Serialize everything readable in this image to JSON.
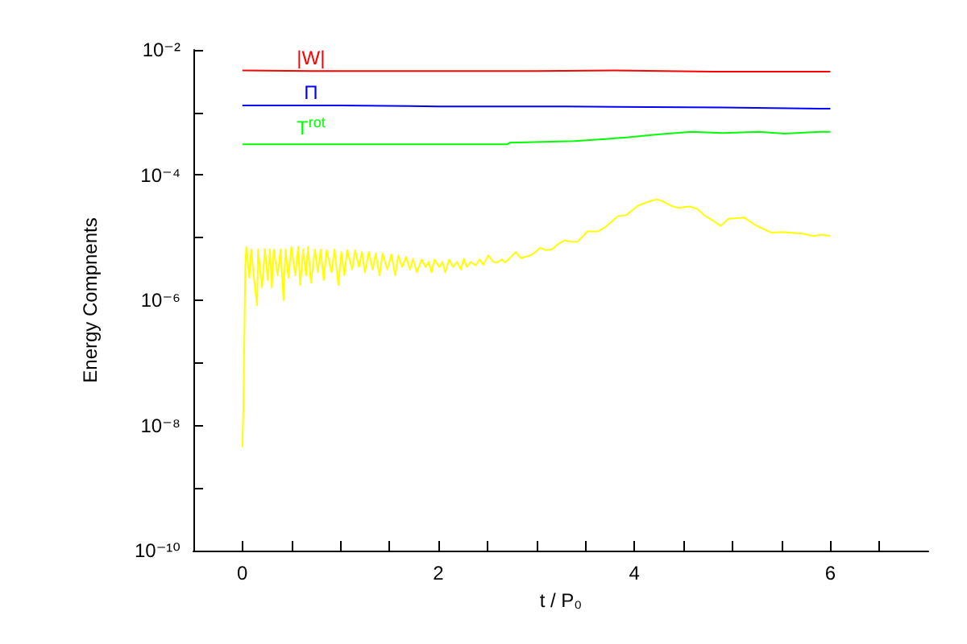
{
  "chart_data": {
    "type": "line",
    "xlabel": "t / P₀",
    "ylabel": "Energy Compnents",
    "log": "y",
    "xlim": [
      -0.5,
      7
    ],
    "xticks": [
      0,
      {
        "value": 0.5,
        "label": null
      },
      {
        "value": 1,
        "label": null
      },
      {
        "value": 1.5,
        "label": null
      },
      2,
      {
        "value": 2.5,
        "label": null
      },
      {
        "value": 3,
        "label": null
      },
      {
        "value": 3.5,
        "label": null
      },
      4,
      {
        "value": 4.5,
        "label": null
      },
      {
        "value": 5,
        "label": null
      },
      {
        "value": 5.5,
        "label": null
      },
      6,
      {
        "value": 6.5,
        "label": null
      }
    ],
    "ylim": [
      1e-10,
      0.01
    ],
    "yticks": [
      {
        "value": 1e-10,
        "label": "10⁻¹⁰"
      },
      {
        "value": 1e-09,
        "label": null
      },
      {
        "value": 1e-08,
        "label": "10⁻⁸"
      },
      {
        "value": 1e-07,
        "label": null
      },
      {
        "value": 1e-06,
        "label": "10⁻⁶"
      },
      {
        "value": 1e-05,
        "label": null
      },
      {
        "value": 0.0001,
        "label": "10⁻⁴"
      },
      {
        "value": 0.001,
        "label": null
      },
      {
        "value": 0.01,
        "label": "10⁻²"
      }
    ],
    "series": [
      {
        "name": "|W|",
        "color": "#ff0000",
        "x": [
          0,
          0.7,
          1,
          2,
          3,
          3.8,
          4.8,
          6
        ],
        "values": [
          0.0047,
          0.0046,
          0.0046,
          0.0046,
          0.0046,
          0.0047,
          0.0045,
          0.0045
        ]
      },
      {
        "name": "Π",
        "color": "#0000ff",
        "x": [
          0,
          0.7,
          1,
          2,
          3.3,
          4.9,
          6
        ],
        "values": [
          0.0013,
          0.0013,
          0.0013,
          0.00125,
          0.00125,
          0.0012,
          0.00115
        ]
      },
      {
        "name": "T$^{rot}$",
        "color": "#00ff00",
        "x": [
          0,
          0.7,
          2.7,
          2.73,
          3.39,
          3.73,
          3.92,
          4.13,
          4.26,
          4.58,
          4.9,
          5.27,
          5.53,
          5.9,
          6
        ],
        "values": [
          0.00031,
          0.00031,
          0.00031,
          0.00033,
          0.00035,
          0.00038,
          0.0004,
          0.00043,
          0.00045,
          0.00049,
          0.00047,
          0.00049,
          0.00046,
          0.00049,
          0.00049
        ]
      },
      {
        "color": "#ffff00",
        "x": [
          0,
          0.01,
          0.03,
          0.04,
          0.07,
          0.09,
          0.12,
          0.15,
          0.16,
          0.2,
          0.23,
          0.26,
          0.28,
          0.3,
          0.32,
          0.36,
          0.39,
          0.42,
          0.44,
          0.47,
          0.5,
          0.54,
          0.57,
          0.59,
          0.62,
          0.65,
          0.67,
          0.7,
          0.74,
          0.77,
          0.8,
          0.83,
          0.86,
          0.91,
          0.94,
          0.98,
          1.01,
          1.04,
          1.07,
          1.12,
          1.15,
          1.19,
          1.22,
          1.25,
          1.29,
          1.33,
          1.36,
          1.4,
          1.43,
          1.48,
          1.52,
          1.56,
          1.59,
          1.63,
          1.67,
          1.71,
          1.74,
          1.78,
          1.83,
          1.87,
          1.9,
          1.93,
          1.96,
          2.01,
          2.04,
          2.07,
          2.11,
          2.15,
          2.19,
          2.23,
          2.26,
          2.29,
          2.33,
          2.38,
          2.42,
          2.46,
          2.51,
          2.56,
          2.6,
          2.65,
          2.68,
          2.74,
          2.79,
          2.84,
          2.94,
          2.99,
          3.04,
          3.1,
          3.16,
          3.22,
          3.29,
          3.35,
          3.42,
          3.52,
          3.63,
          3.71,
          3.83,
          3.92,
          4.03,
          4.13,
          4.23,
          4.29,
          4.38,
          4.45,
          4.56,
          4.64,
          4.71,
          4.82,
          4.88,
          4.96,
          5.12,
          5.24,
          5.4,
          5.51,
          5.59,
          5.72,
          5.83,
          5.91,
          6
        ],
        "values": [
          4.5e-09,
          1.9e-08,
          3.7e-06,
          7.1e-06,
          2.3e-06,
          6.5e-06,
          2.1e-06,
          8.3e-07,
          6.5e-06,
          1.6e-06,
          6.5e-06,
          2.1e-06,
          6.5e-06,
          1.6e-06,
          6.5e-06,
          2.5e-06,
          6.5e-06,
          1e-06,
          6.5e-06,
          2.3e-06,
          7.1e-06,
          2.5e-06,
          7.1e-06,
          1.75e-06,
          6.5e-06,
          2.5e-06,
          7.1e-06,
          1.9e-06,
          6.5e-06,
          2.8e-06,
          6.5e-06,
          2.1e-06,
          6.3e-06,
          2.8e-06,
          6.5e-06,
          1.75e-06,
          5.9e-06,
          2.5e-06,
          6.3e-06,
          3.1e-06,
          6.3e-06,
          3.4e-06,
          5.9e-06,
          2.8e-06,
          5.9e-06,
          3.1e-06,
          5.6e-06,
          2.5e-06,
          5.6e-06,
          3.1e-06,
          5.4e-06,
          2.5e-06,
          5.2e-06,
          3.4e-06,
          4.9e-06,
          3.1e-06,
          4.6e-06,
          2.8e-06,
          4.5e-06,
          3.4e-06,
          4.1e-06,
          2.8e-06,
          4.5e-06,
          3.4e-06,
          4.1e-06,
          2.8e-06,
          4.5e-06,
          3.4e-06,
          4.1e-06,
          3.1e-06,
          4.6e-06,
          3.4e-06,
          4.1e-06,
          3.6e-06,
          4.5e-06,
          3.7e-06,
          5.2e-06,
          4.1e-06,
          4e-06,
          4.5e-06,
          4e-06,
          4.9e-06,
          5.9e-06,
          4.7e-06,
          5.2e-06,
          5.9e-06,
          6.9e-06,
          6.3e-06,
          6.5e-06,
          7.9e-06,
          9.1e-06,
          8.6e-06,
          8.6e-06,
          1.26e-05,
          1.26e-05,
          1.5e-05,
          2.2e-05,
          2.3e-05,
          3.2e-05,
          3.7e-05,
          4.1e-05,
          3.8e-05,
          3.2e-05,
          3e-05,
          3.15e-05,
          2.9e-05,
          2.3e-05,
          1.8e-05,
          1.54e-05,
          2e-05,
          2.1e-05,
          1.57e-05,
          1.2e-05,
          1.23e-05,
          1.2e-05,
          1.16e-05,
          1.06e-05,
          1.12e-05,
          1.06e-05
        ]
      }
    ]
  }
}
